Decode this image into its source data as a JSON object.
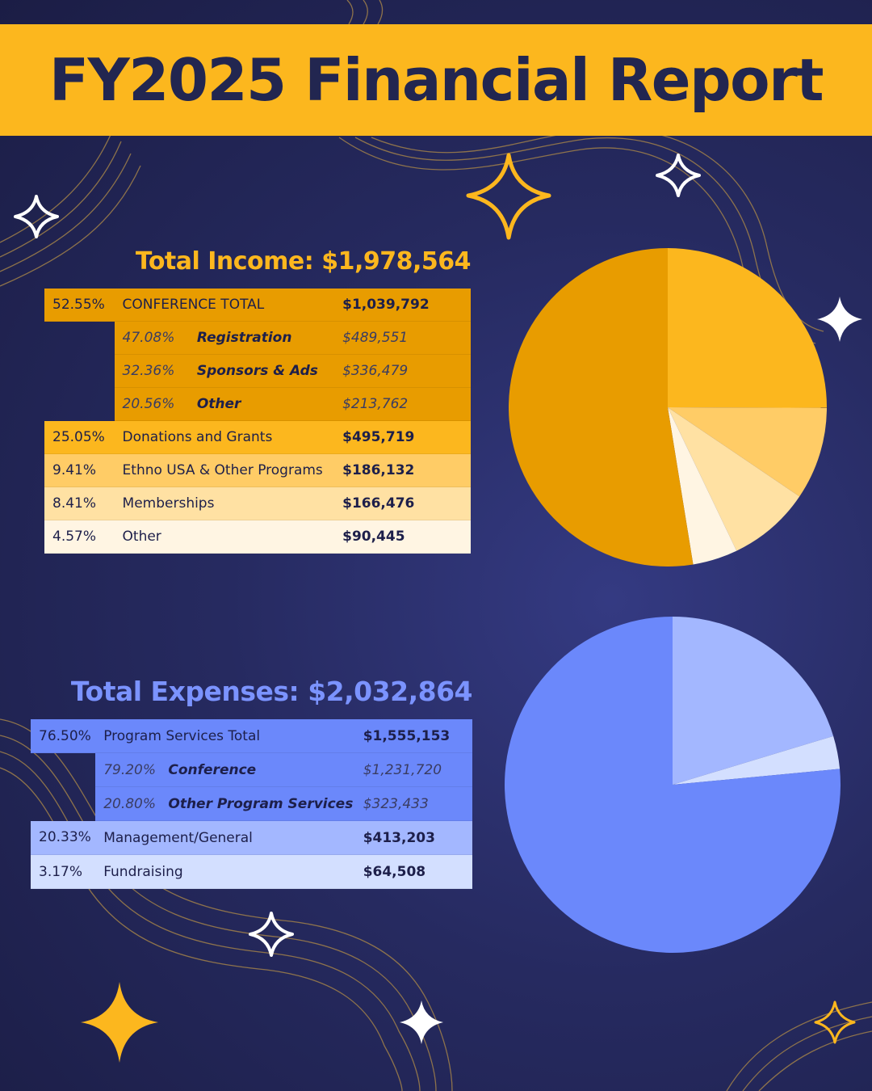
{
  "title": "FY2025 Financial Report",
  "colors": {
    "banner": "#fcb71e",
    "title_text": "#222650",
    "income_heading": "#fcb71e",
    "expense_heading": "#7b93ff",
    "star_gold": "#fcb71e",
    "star_white": "#ffffff",
    "wave_lines": "#a0804a"
  },
  "income": {
    "heading": "Total Income: $1,978,564",
    "rows": [
      {
        "pct": "52.55%",
        "label": "CONFERENCE TOTAL",
        "amount": "$1,039,792",
        "color": "#e89c00",
        "sub": false
      },
      {
        "pct": "47.08%",
        "label": "Registration",
        "amount": "$489,551",
        "color": "#e89c00",
        "sub": true
      },
      {
        "pct": "32.36%",
        "label": "Sponsors & Ads",
        "amount": "$336,479",
        "color": "#e89c00",
        "sub": true
      },
      {
        "pct": "20.56%",
        "label": "Other",
        "amount": "$213,762",
        "color": "#e89c00",
        "sub": true
      },
      {
        "pct": "25.05%",
        "label": "Donations and Grants",
        "amount": "$495,719",
        "color": "#fcb71e",
        "sub": false
      },
      {
        "pct": "9.41%",
        "label": "Ethno USA & Other Programs",
        "amount": "$186,132",
        "color": "#ffcc66",
        "sub": false
      },
      {
        "pct": "8.41%",
        "label": "Memberships",
        "amount": "$166,476",
        "color": "#ffe1a3",
        "sub": false
      },
      {
        "pct": "4.57%",
        "label": "Other",
        "amount": "$90,445",
        "color": "#fff5e3",
        "sub": false
      }
    ]
  },
  "expenses": {
    "heading": "Total Expenses: $2,032,864",
    "rows": [
      {
        "pct": "76.50%",
        "label": "Program Services Total",
        "amount": "$1,555,153",
        "color": "#6b88fb",
        "sub": false
      },
      {
        "pct": "79.20%",
        "label": "Conference",
        "amount": "$1,231,720",
        "color": "#6b88fb",
        "sub": true
      },
      {
        "pct": "20.80%",
        "label": "Other Program Services",
        "amount": "$323,433",
        "color": "#6b88fb",
        "sub": true
      },
      {
        "pct": "20.33%",
        "label": "Management/General",
        "amount": "$413,203",
        "color": "#a3b7ff",
        "sub": false
      },
      {
        "pct": "3.17%",
        "label": "Fundraising",
        "amount": "$64,508",
        "color": "#d3dfff",
        "sub": false
      }
    ]
  },
  "chart_data": [
    {
      "type": "pie",
      "title": "Total Income: $1,978,564",
      "categories": [
        "Donations and Grants",
        "Ethno USA & Other Programs",
        "Memberships",
        "Other",
        "CONFERENCE TOTAL"
      ],
      "values": [
        25.05,
        9.41,
        8.41,
        4.57,
        52.55
      ],
      "colors": [
        "#fcb71e",
        "#ffcc66",
        "#ffe1a3",
        "#fff5e3",
        "#e89c00"
      ],
      "start": "12 o'clock",
      "direction": "clockwise"
    },
    {
      "type": "pie",
      "title": "Total Expenses: $2,032,864",
      "categories": [
        "Management/General",
        "Fundraising",
        "Program Services Total"
      ],
      "values": [
        20.33,
        3.17,
        76.5
      ],
      "colors": [
        "#a3b7ff",
        "#d3dfff",
        "#6b88fb"
      ],
      "start": "12 o'clock",
      "direction": "clockwise"
    }
  ]
}
